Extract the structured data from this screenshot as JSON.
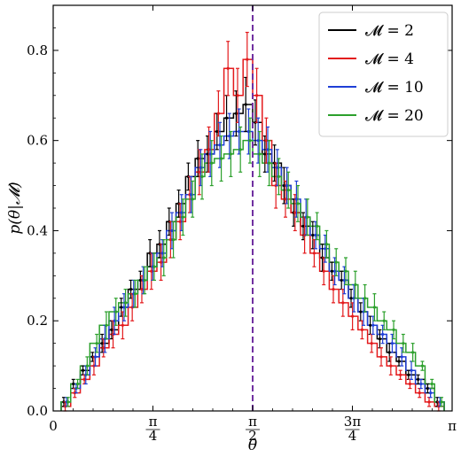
{
  "chart_data": {
    "type": "line",
    "step": true,
    "xlabel": "θ",
    "ylabel": "p(θ|𝓜)",
    "xlim": [
      0,
      3.1416
    ],
    "ylim": [
      0,
      0.9
    ],
    "x_ticks": [
      {
        "value": 0,
        "label": "0"
      },
      {
        "value": 0.7854,
        "label": "π/4"
      },
      {
        "value": 1.5708,
        "label": "π/2"
      },
      {
        "value": 2.3562,
        "label": "3π/4"
      },
      {
        "value": 3.1416,
        "label": "π"
      }
    ],
    "y_ticks": [
      {
        "value": 0.0,
        "label": "0.0"
      },
      {
        "value": 0.2,
        "label": "0.2"
      },
      {
        "value": 0.4,
        "label": "0.4"
      },
      {
        "value": 0.6,
        "label": "0.6"
      },
      {
        "value": 0.8,
        "label": "0.8"
      }
    ],
    "vline": {
      "x": 1.5708,
      "color": "#7030a0",
      "dash": true
    },
    "legend_position": "top-right",
    "bins": 40,
    "series": [
      {
        "name": "𝓜 = 2",
        "label": "𝓜",
        "value": "2",
        "color": "#000000",
        "values": [
          0.02,
          0.06,
          0.09,
          0.12,
          0.15,
          0.18,
          0.23,
          0.27,
          0.29,
          0.35,
          0.37,
          0.42,
          0.46,
          0.52,
          0.56,
          0.57,
          0.62,
          0.65,
          0.66,
          0.68,
          0.64,
          0.57,
          0.55,
          0.5,
          0.44,
          0.41,
          0.39,
          0.34,
          0.31,
          0.29,
          0.25,
          0.22,
          0.19,
          0.16,
          0.13,
          0.11,
          0.08,
          0.07,
          0.05,
          0.02
        ],
        "errors": [
          0.01,
          0.01,
          0.01,
          0.01,
          0.02,
          0.02,
          0.02,
          0.02,
          0.02,
          0.03,
          0.03,
          0.03,
          0.03,
          0.03,
          0.04,
          0.04,
          0.04,
          0.05,
          0.05,
          0.06,
          0.05,
          0.04,
          0.04,
          0.04,
          0.03,
          0.03,
          0.03,
          0.03,
          0.02,
          0.02,
          0.02,
          0.02,
          0.02,
          0.02,
          0.02,
          0.01,
          0.01,
          0.01,
          0.01,
          0.01
        ]
      },
      {
        "name": "𝓜 = 4",
        "label": "𝓜",
        "value": "4",
        "color": "#e31a1c",
        "values": [
          0.01,
          0.04,
          0.07,
          0.1,
          0.14,
          0.17,
          0.19,
          0.23,
          0.27,
          0.31,
          0.33,
          0.38,
          0.42,
          0.48,
          0.53,
          0.58,
          0.66,
          0.76,
          0.7,
          0.78,
          0.7,
          0.6,
          0.5,
          0.47,
          0.44,
          0.39,
          0.35,
          0.31,
          0.27,
          0.24,
          0.21,
          0.18,
          0.15,
          0.12,
          0.1,
          0.08,
          0.06,
          0.04,
          0.02,
          0.01
        ],
        "errors": [
          0.01,
          0.01,
          0.01,
          0.02,
          0.02,
          0.03,
          0.03,
          0.03,
          0.03,
          0.04,
          0.04,
          0.04,
          0.04,
          0.04,
          0.05,
          0.05,
          0.05,
          0.06,
          0.06,
          0.06,
          0.06,
          0.05,
          0.05,
          0.04,
          0.04,
          0.04,
          0.03,
          0.03,
          0.03,
          0.03,
          0.03,
          0.02,
          0.02,
          0.02,
          0.02,
          0.01,
          0.01,
          0.01,
          0.01,
          0.01
        ]
      },
      {
        "name": "𝓜 = 10",
        "label": "𝓜",
        "value": "10",
        "color": "#1f3fd6",
        "values": [
          0.02,
          0.05,
          0.08,
          0.12,
          0.16,
          0.2,
          0.23,
          0.26,
          0.29,
          0.32,
          0.35,
          0.4,
          0.44,
          0.48,
          0.54,
          0.57,
          0.59,
          0.61,
          0.62,
          0.62,
          0.6,
          0.58,
          0.54,
          0.5,
          0.47,
          0.43,
          0.39,
          0.36,
          0.31,
          0.29,
          0.25,
          0.22,
          0.19,
          0.17,
          0.15,
          0.12,
          0.09,
          0.06,
          0.04,
          0.02
        ],
        "errors": [
          0.01,
          0.01,
          0.02,
          0.02,
          0.03,
          0.03,
          0.03,
          0.03,
          0.03,
          0.03,
          0.03,
          0.04,
          0.04,
          0.04,
          0.04,
          0.05,
          0.05,
          0.05,
          0.05,
          0.05,
          0.05,
          0.05,
          0.04,
          0.04,
          0.04,
          0.04,
          0.03,
          0.03,
          0.03,
          0.03,
          0.03,
          0.03,
          0.02,
          0.02,
          0.02,
          0.02,
          0.02,
          0.01,
          0.01,
          0.01
        ]
      },
      {
        "name": "𝓜 = 20",
        "label": "𝓜",
        "value": "20",
        "color": "#2ca02c",
        "values": [
          0.02,
          0.06,
          0.1,
          0.15,
          0.19,
          0.22,
          0.24,
          0.26,
          0.29,
          0.32,
          0.34,
          0.38,
          0.43,
          0.47,
          0.52,
          0.55,
          0.56,
          0.57,
          0.58,
          0.6,
          0.57,
          0.55,
          0.52,
          0.49,
          0.46,
          0.43,
          0.41,
          0.37,
          0.33,
          0.31,
          0.28,
          0.25,
          0.23,
          0.2,
          0.18,
          0.15,
          0.13,
          0.1,
          0.06,
          0.02
        ],
        "errors": [
          0.01,
          0.01,
          0.02,
          0.02,
          0.03,
          0.03,
          0.03,
          0.03,
          0.03,
          0.03,
          0.04,
          0.04,
          0.04,
          0.04,
          0.05,
          0.05,
          0.05,
          0.05,
          0.05,
          0.05,
          0.05,
          0.05,
          0.04,
          0.04,
          0.04,
          0.04,
          0.03,
          0.03,
          0.03,
          0.03,
          0.03,
          0.03,
          0.03,
          0.02,
          0.02,
          0.02,
          0.02,
          0.01,
          0.01,
          0.01
        ]
      }
    ]
  }
}
